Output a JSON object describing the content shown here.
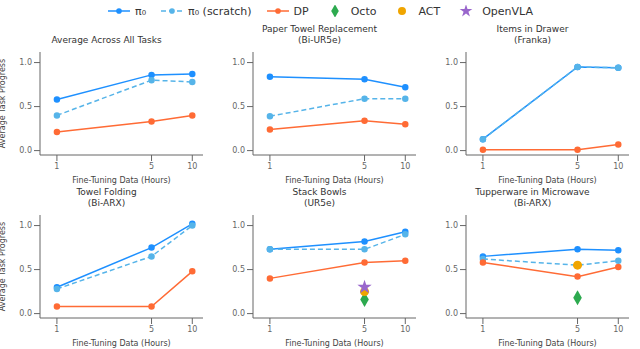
{
  "chart_data": [
    {
      "type": "line",
      "title": "Average Across All Tasks",
      "xlabel": "Fine-Tuning Data (Hours)",
      "ylabel": "Average Task Progress",
      "log": "x",
      "grid": false,
      "legend": "top",
      "x": [
        1,
        5,
        10
      ],
      "xlim": [
        0.75,
        12
      ],
      "xticks": [
        1,
        5,
        10
      ],
      "ylim": [
        -0.05,
        1.12
      ],
      "yticks": [
        {
          "value": 0.0,
          "label": "0.0"
        },
        0.5,
        {
          "value": 1.0,
          "label": "1.0"
        }
      ],
      "series": [
        {
          "name": "π₀",
          "type": "line",
          "color": "#1E90FF",
          "marker": "circle",
          "line_style": "solid",
          "values": [
            0.58,
            0.86,
            0.87
          ]
        },
        {
          "name": "π₀ (scratch)",
          "type": "line",
          "color": "#56B4E9",
          "marker": "circle",
          "line_style": "dashed",
          "values": [
            0.4,
            0.8,
            0.78
          ]
        },
        {
          "name": "DP",
          "type": "line",
          "color": "#FF6B35",
          "marker": "circle",
          "line_style": "solid",
          "values": [
            0.21,
            0.33,
            0.4
          ]
        }
      ]
    },
    {
      "type": "line",
      "title": "Paper Towel Replacement",
      "subtitle": "(Bi-UR5e)",
      "xlabel": "Fine-Tuning Data (Hours)",
      "log": "x",
      "grid": false,
      "legend": "top",
      "x": [
        1,
        5,
        10
      ],
      "xlim": [
        0.75,
        12
      ],
      "xticks": [
        1,
        5,
        10
      ],
      "ylim": [
        -0.05,
        1.12
      ],
      "yticks": [
        {
          "value": 0.0,
          "label": "0.0"
        },
        0.5,
        {
          "value": 1.0,
          "label": "1.0"
        }
      ],
      "series": [
        {
          "name": "π₀",
          "type": "line",
          "color": "#1E90FF",
          "marker": "circle",
          "line_style": "solid",
          "values": [
            0.84,
            0.81,
            0.72
          ]
        },
        {
          "name": "π₀ (scratch)",
          "type": "line",
          "color": "#56B4E9",
          "marker": "circle",
          "line_style": "dashed",
          "values": [
            0.39,
            0.59,
            0.59
          ]
        },
        {
          "name": "DP",
          "type": "line",
          "color": "#FF6B35",
          "marker": "circle",
          "line_style": "solid",
          "values": [
            0.24,
            0.34,
            0.3
          ]
        }
      ]
    },
    {
      "type": "line",
      "title": "Items in Drawer",
      "subtitle": "(Franka)",
      "xlabel": "Fine-Tuning Data (Hours)",
      "log": "x",
      "grid": false,
      "legend": "top",
      "x": [
        1,
        5,
        10
      ],
      "xlim": [
        0.75,
        12
      ],
      "xticks": [
        1,
        5,
        10
      ],
      "ylim": [
        -0.05,
        1.12
      ],
      "yticks": [
        {
          "value": 0.0,
          "label": "0.0"
        },
        0.5,
        {
          "value": 1.0,
          "label": "1.0"
        }
      ],
      "series": [
        {
          "name": "π₀",
          "type": "line",
          "color": "#1E90FF",
          "marker": "circle",
          "line_style": "solid",
          "values": [
            0.13,
            0.95,
            0.94
          ]
        },
        {
          "name": "π₀ (scratch)",
          "type": "line",
          "color": "#56B4E9",
          "marker": "circle",
          "line_style": "dashed",
          "values": [
            0.13,
            0.95,
            0.94
          ]
        },
        {
          "name": "DP",
          "type": "line",
          "color": "#FF6B35",
          "marker": "circle",
          "line_style": "solid",
          "values": [
            0.01,
            0.01,
            0.07
          ]
        }
      ]
    },
    {
      "type": "line",
      "title": "Towel Folding",
      "subtitle": "(Bi-ARX)",
      "xlabel": "Fine-Tuning Data (Hours)",
      "ylabel": "Average Task Progress",
      "log": "x",
      "grid": false,
      "legend": "top",
      "x": [
        1,
        5,
        10
      ],
      "xlim": [
        0.75,
        12
      ],
      "xticks": [
        1,
        5,
        10
      ],
      "ylim": [
        -0.05,
        1.12
      ],
      "yticks": [
        {
          "value": 0.0,
          "label": "0.0"
        },
        0.5,
        {
          "value": 1.0,
          "label": "1.0"
        }
      ],
      "series": [
        {
          "name": "π₀",
          "type": "line",
          "color": "#1E90FF",
          "marker": "circle",
          "line_style": "solid",
          "values": [
            0.3,
            0.75,
            1.02
          ]
        },
        {
          "name": "π₀ (scratch)",
          "type": "line",
          "color": "#56B4E9",
          "marker": "circle",
          "line_style": "dashed",
          "values": [
            0.28,
            0.65,
            1.0
          ]
        },
        {
          "name": "DP",
          "type": "line",
          "color": "#FF6B35",
          "marker": "circle",
          "line_style": "solid",
          "values": [
            0.08,
            0.08,
            0.48
          ]
        }
      ]
    },
    {
      "type": "line",
      "title": "Stack Bowls",
      "subtitle": "(UR5e)",
      "xlabel": "Fine-Tuning Data (Hours)",
      "log": "x",
      "grid": false,
      "legend": "top",
      "x": [
        1,
        5,
        10
      ],
      "xlim": [
        0.75,
        12
      ],
      "xticks": [
        1,
        5,
        10
      ],
      "ylim": [
        -0.05,
        1.12
      ],
      "yticks": [
        {
          "value": 0.0,
          "label": "0.0"
        },
        0.5,
        {
          "value": 1.0,
          "label": "1.0"
        }
      ],
      "series": [
        {
          "name": "π₀",
          "type": "line",
          "color": "#1E90FF",
          "marker": "circle",
          "line_style": "solid",
          "values": [
            0.73,
            0.82,
            0.93
          ]
        },
        {
          "name": "π₀ (scratch)",
          "type": "line",
          "color": "#56B4E9",
          "marker": "circle",
          "line_style": "dashed",
          "values": [
            0.73,
            0.73,
            0.9
          ]
        },
        {
          "name": "DP",
          "type": "line",
          "color": "#FF6B35",
          "marker": "circle",
          "line_style": "solid",
          "values": [
            0.4,
            0.58,
            0.6
          ]
        },
        {
          "name": "Octo",
          "type": "scatter",
          "color": "#2DAA4F",
          "marker": "diamond",
          "values": [
            null,
            0.16,
            null
          ]
        },
        {
          "name": "ACT",
          "type": "scatter",
          "color": "#F0A500",
          "marker": "circle",
          "values": [
            null,
            0.25,
            null
          ]
        },
        {
          "name": "OpenVLA",
          "type": "scatter",
          "color": "#9966CC",
          "marker": "star",
          "values": [
            null,
            0.3,
            null
          ]
        }
      ]
    },
    {
      "type": "line",
      "title": "Tupperware in Microwave",
      "subtitle": "(Bi-ARX)",
      "xlabel": "Fine-Tuning Data (Hours)",
      "log": "x",
      "grid": false,
      "legend": "top",
      "x": [
        1,
        5,
        10
      ],
      "xlim": [
        0.75,
        12
      ],
      "xticks": [
        1,
        5,
        10
      ],
      "ylim": [
        -0.05,
        1.12
      ],
      "yticks": [
        {
          "value": 0.0,
          "label": "0.0"
        },
        0.5,
        {
          "value": 1.0,
          "label": "1.0"
        }
      ],
      "series": [
        {
          "name": "π₀",
          "type": "line",
          "color": "#1E90FF",
          "marker": "circle",
          "line_style": "solid",
          "values": [
            0.65,
            0.73,
            0.72
          ]
        },
        {
          "name": "π₀ (scratch)",
          "type": "line",
          "color": "#56B4E9",
          "marker": "circle",
          "line_style": "dashed",
          "values": [
            0.62,
            0.55,
            0.6
          ]
        },
        {
          "name": "DP",
          "type": "line",
          "color": "#FF6B35",
          "marker": "circle",
          "line_style": "solid",
          "values": [
            0.58,
            0.42,
            0.53
          ]
        },
        {
          "name": "Octo",
          "type": "scatter",
          "color": "#2DAA4F",
          "marker": "diamond",
          "values": [
            null,
            0.18,
            null
          ]
        },
        {
          "name": "ACT",
          "type": "scatter",
          "color": "#F0A500",
          "marker": "circle",
          "values": [
            null,
            0.55,
            null
          ]
        }
      ]
    }
  ]
}
